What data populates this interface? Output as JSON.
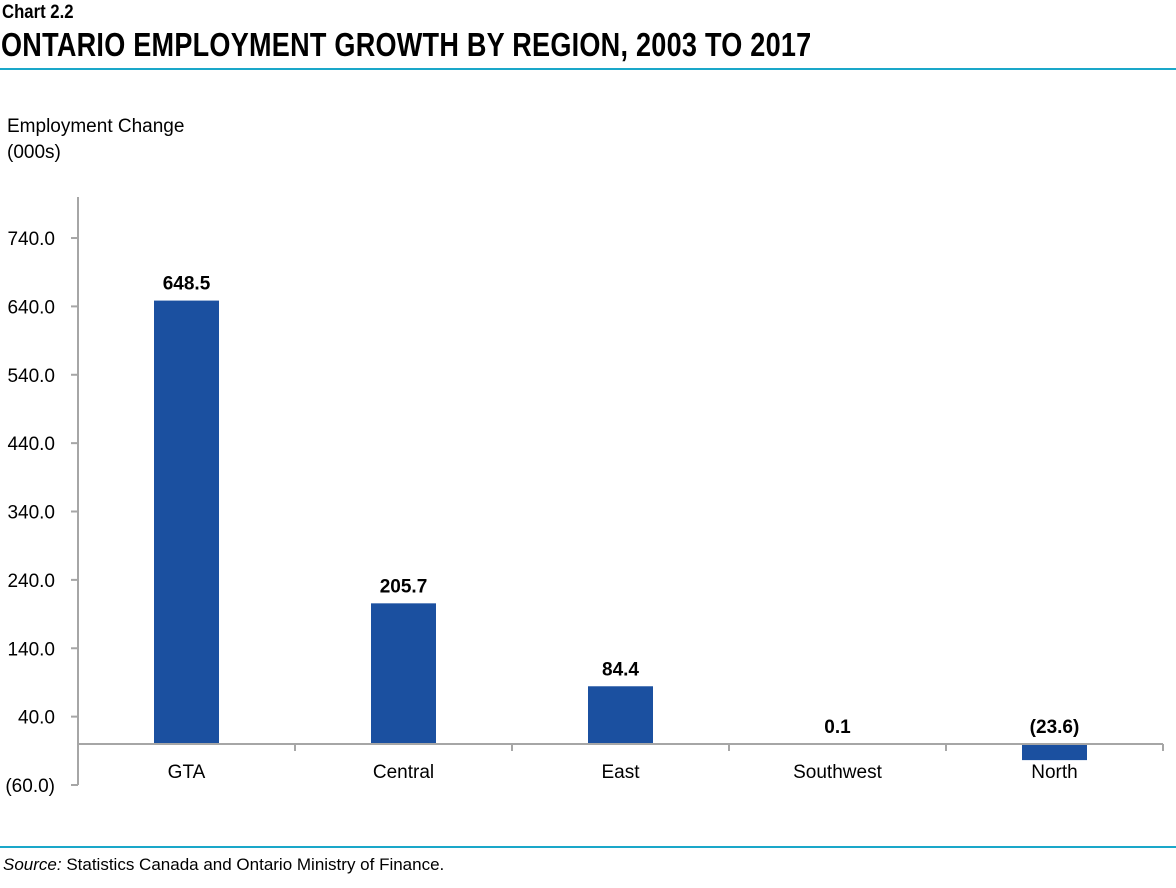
{
  "header": {
    "kicker": "Chart 2.2",
    "title": "ONTARIO EMPLOYMENT GROWTH BY REGION, 2003 TO 2017"
  },
  "footer": {
    "source_label": "Source:",
    "source_text": " Statistics Canada and Ontario Ministry of Finance."
  },
  "chart_data": {
    "type": "bar",
    "title": "ONTARIO EMPLOYMENT GROWTH BY REGION, 2003 TO 2017",
    "ylabel_lines": [
      "Employment Change",
      "(000s)"
    ],
    "categories": [
      "GTA",
      "Central",
      "East",
      "Southwest",
      "North"
    ],
    "values": [
      648.5,
      205.7,
      84.4,
      0.1,
      -23.6
    ],
    "data_labels": [
      "648.5",
      "205.7",
      "84.4",
      "0.1",
      "(23.6)"
    ],
    "yticks": [
      -60,
      40,
      140,
      240,
      340,
      440,
      540,
      640,
      740
    ],
    "ytick_labels": [
      "(60.0)",
      "40.0",
      "140.0",
      "240.0",
      "340.0",
      "440.0",
      "540.0",
      "640.0",
      "740.0"
    ],
    "ylim": [
      -60,
      800
    ],
    "grid": false,
    "bar_color": "#1b50a0",
    "accent_color": "#1aa7c9"
  }
}
